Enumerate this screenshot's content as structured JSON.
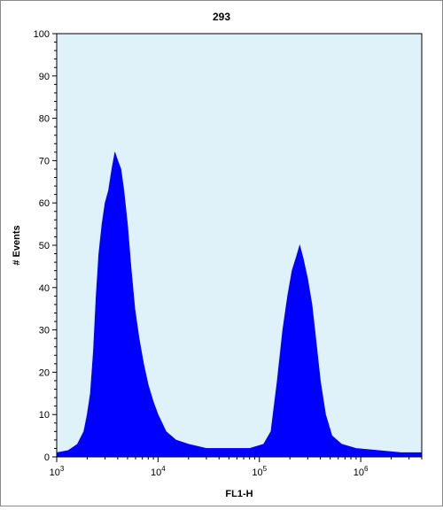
{
  "chart_data": {
    "type": "histogram",
    "title": "293",
    "xlabel": "FL1-H",
    "ylabel": "# Events",
    "x_scale": "log",
    "xlim": [
      1000,
      4000000
    ],
    "ylim": [
      0,
      100
    ],
    "y_ticks": [
      "0",
      "10",
      "20",
      "30",
      "40",
      "50",
      "60",
      "70",
      "80",
      "90",
      "100"
    ],
    "x_ticks": [
      {
        "base": "10",
        "exp": "3",
        "value": 1000
      },
      {
        "base": "10",
        "exp": "4",
        "value": 10000
      },
      {
        "base": "10",
        "exp": "5",
        "value": 100000
      },
      {
        "base": "10",
        "exp": "6",
        "value": 1000000
      }
    ],
    "grid": false,
    "background_color": "#dff1f9",
    "fill_color": "#0000ff",
    "series": [
      {
        "points": [
          [
            1000,
            1
          ],
          [
            1300,
            1.5
          ],
          [
            1600,
            3
          ],
          [
            1850,
            6
          ],
          [
            2000,
            10
          ],
          [
            2150,
            15
          ],
          [
            2300,
            25
          ],
          [
            2450,
            38
          ],
          [
            2600,
            48
          ],
          [
            2800,
            55
          ],
          [
            3000,
            60
          ],
          [
            3250,
            63
          ],
          [
            3500,
            68
          ],
          [
            3750,
            72
          ],
          [
            4000,
            70
          ],
          [
            4300,
            68
          ],
          [
            4600,
            63
          ],
          [
            5000,
            55
          ],
          [
            5400,
            45
          ],
          [
            5900,
            35
          ],
          [
            6500,
            28
          ],
          [
            7200,
            22
          ],
          [
            8000,
            17
          ],
          [
            9000,
            13
          ],
          [
            10000,
            10
          ],
          [
            12000,
            6
          ],
          [
            15000,
            4
          ],
          [
            20000,
            3
          ],
          [
            30000,
            2
          ],
          [
            50000,
            2
          ],
          [
            80000,
            2
          ],
          [
            110000,
            3
          ],
          [
            130000,
            6
          ],
          [
            150000,
            18
          ],
          [
            170000,
            30
          ],
          [
            190000,
            38
          ],
          [
            210000,
            44
          ],
          [
            230000,
            47
          ],
          [
            250000,
            50
          ],
          [
            270000,
            47
          ],
          [
            300000,
            42
          ],
          [
            330000,
            36
          ],
          [
            360000,
            28
          ],
          [
            400000,
            18
          ],
          [
            450000,
            10
          ],
          [
            520000,
            5
          ],
          [
            650000,
            3
          ],
          [
            900000,
            2
          ],
          [
            1500000,
            1.5
          ],
          [
            2500000,
            1
          ],
          [
            4000000,
            1
          ]
        ]
      }
    ]
  }
}
